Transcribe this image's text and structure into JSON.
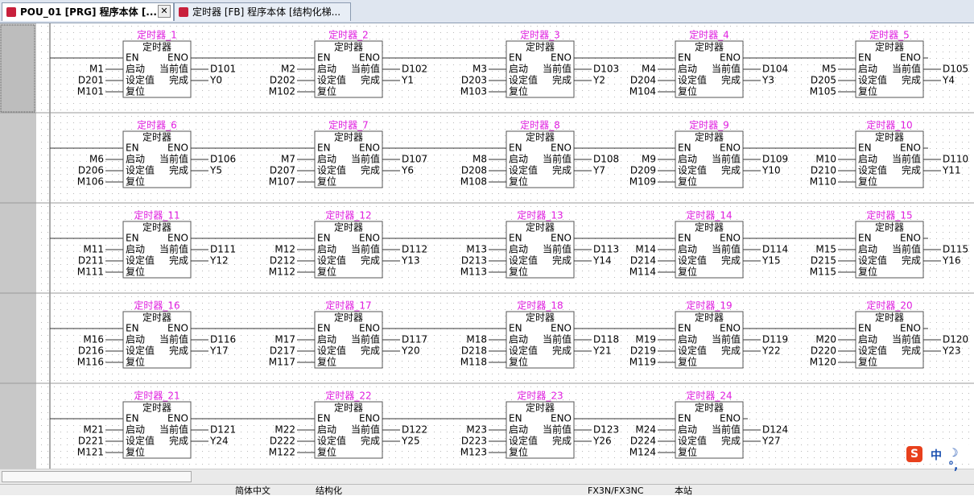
{
  "tabs": [
    "POU_01 [PRG] 程序本体 [...",
    "定时器 [FB] 程序本体 [结构化梯..."
  ],
  "block_pins": {
    "type": "定时器",
    "en": "EN",
    "eno": "ENO",
    "in1": "启动",
    "out1": "当前值",
    "in2": "设定值",
    "out2": "完成",
    "in3": "复位"
  },
  "blocks": [
    {
      "name": "定时器_1",
      "start": "M1",
      "preset": "D201",
      "reset": "M101",
      "current": "D101",
      "done": "Y0"
    },
    {
      "name": "定时器_2",
      "start": "M2",
      "preset": "D202",
      "reset": "M102",
      "current": "D102",
      "done": "Y1"
    },
    {
      "name": "定时器_3",
      "start": "M3",
      "preset": "D203",
      "reset": "M103",
      "current": "D103",
      "done": "Y2"
    },
    {
      "name": "定时器_4",
      "start": "M4",
      "preset": "D204",
      "reset": "M104",
      "current": "D104",
      "done": "Y3"
    },
    {
      "name": "定时器_5",
      "start": "M5",
      "preset": "D205",
      "reset": "M105",
      "current": "D105",
      "done": "Y4"
    },
    {
      "name": "定时器_6",
      "start": "M6",
      "preset": "D206",
      "reset": "M106",
      "current": "D106",
      "done": "Y5"
    },
    {
      "name": "定时器_7",
      "start": "M7",
      "preset": "D207",
      "reset": "M107",
      "current": "D107",
      "done": "Y6"
    },
    {
      "name": "定时器_8",
      "start": "M8",
      "preset": "D208",
      "reset": "M108",
      "current": "D108",
      "done": "Y7"
    },
    {
      "name": "定时器_9",
      "start": "M9",
      "preset": "D209",
      "reset": "M109",
      "current": "D109",
      "done": "Y10"
    },
    {
      "name": "定时器_10",
      "start": "M10",
      "preset": "D210",
      "reset": "M110",
      "current": "D110",
      "done": "Y11"
    },
    {
      "name": "定时器_11",
      "start": "M11",
      "preset": "D211",
      "reset": "M111",
      "current": "D111",
      "done": "Y12"
    },
    {
      "name": "定时器_12",
      "start": "M12",
      "preset": "D212",
      "reset": "M112",
      "current": "D112",
      "done": "Y13"
    },
    {
      "name": "定时器_13",
      "start": "M13",
      "preset": "D213",
      "reset": "M113",
      "current": "D113",
      "done": "Y14"
    },
    {
      "name": "定时器_14",
      "start": "M14",
      "preset": "D214",
      "reset": "M114",
      "current": "D114",
      "done": "Y15"
    },
    {
      "name": "定时器_15",
      "start": "M15",
      "preset": "D215",
      "reset": "M115",
      "current": "D115",
      "done": "Y16"
    },
    {
      "name": "定时器_16",
      "start": "M16",
      "preset": "D216",
      "reset": "M116",
      "current": "D116",
      "done": "Y17"
    },
    {
      "name": "定时器_17",
      "start": "M17",
      "preset": "D217",
      "reset": "M117",
      "current": "D117",
      "done": "Y20"
    },
    {
      "name": "定时器_18",
      "start": "M18",
      "preset": "D218",
      "reset": "M118",
      "current": "D118",
      "done": "Y21"
    },
    {
      "name": "定时器_19",
      "start": "M19",
      "preset": "D219",
      "reset": "M119",
      "current": "D119",
      "done": "Y22"
    },
    {
      "name": "定时器_20",
      "start": "M20",
      "preset": "D220",
      "reset": "M120",
      "current": "D120",
      "done": "Y23"
    },
    {
      "name": "定时器_21",
      "start": "M21",
      "preset": "D221",
      "reset": "M121",
      "current": "D121",
      "done": "Y24"
    },
    {
      "name": "定时器_22",
      "start": "M22",
      "preset": "D222",
      "reset": "M122",
      "current": "D122",
      "done": "Y25"
    },
    {
      "name": "定时器_23",
      "start": "M23",
      "preset": "D223",
      "reset": "M123",
      "current": "D123",
      "done": "Y26"
    },
    {
      "name": "定时器_24",
      "start": "M24",
      "preset": "D224",
      "reset": "M124",
      "current": "D124",
      "done": "Y27"
    }
  ],
  "status": [
    "简体中文",
    "结构化",
    "FX3N/FX3NC",
    "本站"
  ],
  "ime": "中"
}
